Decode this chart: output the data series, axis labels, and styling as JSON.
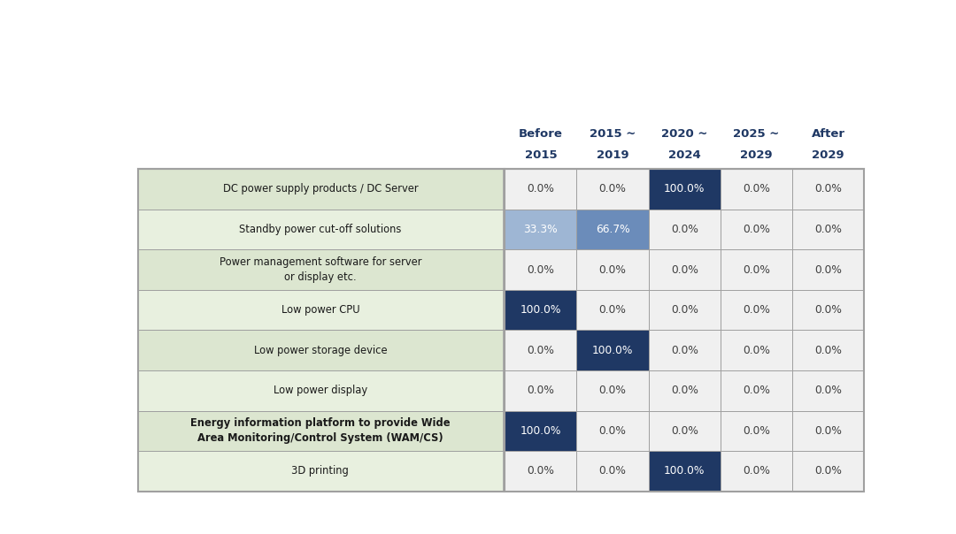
{
  "col_headers": [
    [
      "Before",
      "2015"
    ],
    [
      "2015 ~",
      "2019"
    ],
    [
      "2020 ~",
      "2024"
    ],
    [
      "2025 ~",
      "2029"
    ],
    [
      "After",
      "2029"
    ]
  ],
  "row_labels": [
    "DC power supply products / DC Server",
    "Standby power cut-off solutions",
    "Power management software for server\nor display etc.",
    "Low power CPU",
    "Low power storage device",
    "Low power display",
    "Energy information platform to provide Wide\nArea Monitoring/Control System (WAM/CS)",
    "3D printing"
  ],
  "values": [
    [
      0.0,
      0.0,
      100.0,
      0.0,
      0.0
    ],
    [
      33.3,
      66.7,
      0.0,
      0.0,
      0.0
    ],
    [
      0.0,
      0.0,
      0.0,
      0.0,
      0.0
    ],
    [
      100.0,
      0.0,
      0.0,
      0.0,
      0.0
    ],
    [
      0.0,
      100.0,
      0.0,
      0.0,
      0.0
    ],
    [
      0.0,
      0.0,
      0.0,
      0.0,
      0.0
    ],
    [
      100.0,
      0.0,
      0.0,
      0.0,
      0.0
    ],
    [
      0.0,
      0.0,
      100.0,
      0.0,
      0.0
    ]
  ],
  "cell_colors": [
    [
      "white",
      "white",
      "dark_blue",
      "white",
      "white"
    ],
    [
      "light_blue",
      "mid_blue",
      "white",
      "white",
      "white"
    ],
    [
      "white",
      "white",
      "white",
      "white",
      "white"
    ],
    [
      "dark_blue",
      "white",
      "white",
      "white",
      "white"
    ],
    [
      "white",
      "dark_blue",
      "white",
      "white",
      "white"
    ],
    [
      "white",
      "white",
      "white",
      "white",
      "white"
    ],
    [
      "dark_blue",
      "white",
      "white",
      "white",
      "white"
    ],
    [
      "white",
      "white",
      "dark_blue",
      "white",
      "white"
    ]
  ],
  "color_map": {
    "dark_blue": "#1f3864",
    "mid_blue": "#6b8cba",
    "light_blue": "#9eb6d4",
    "white": "#f0f0f0",
    "row_bg_odd": "#dce6d0",
    "row_bg_even": "#e8f0df",
    "header_text_color": "#1f3864",
    "cell_text_dark": "#ffffff",
    "cell_text_light": "#404040",
    "grid_color": "#a0a0a0"
  },
  "bold_rows": [
    6
  ],
  "fig_width": 10.8,
  "fig_height": 6.04
}
